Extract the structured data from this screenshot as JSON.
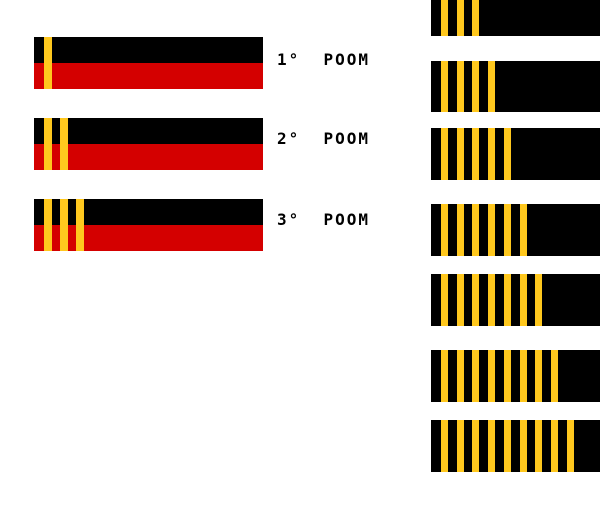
{
  "colors": {
    "black": "#000000",
    "red": "#d40000",
    "gold": "#ffc81e"
  },
  "poom_belts": [
    {
      "label": "1°  POOM",
      "stripes": 1
    },
    {
      "label": "2°  POOM",
      "stripes": 2
    },
    {
      "label": "3°  POOM",
      "stripes": 3
    }
  ],
  "dan_belts": [
    {
      "stripes": 3
    },
    {
      "stripes": 4
    },
    {
      "stripes": 5
    },
    {
      "stripes": 6
    },
    {
      "stripes": 7
    },
    {
      "stripes": 8
    },
    {
      "stripes": 9
    }
  ]
}
